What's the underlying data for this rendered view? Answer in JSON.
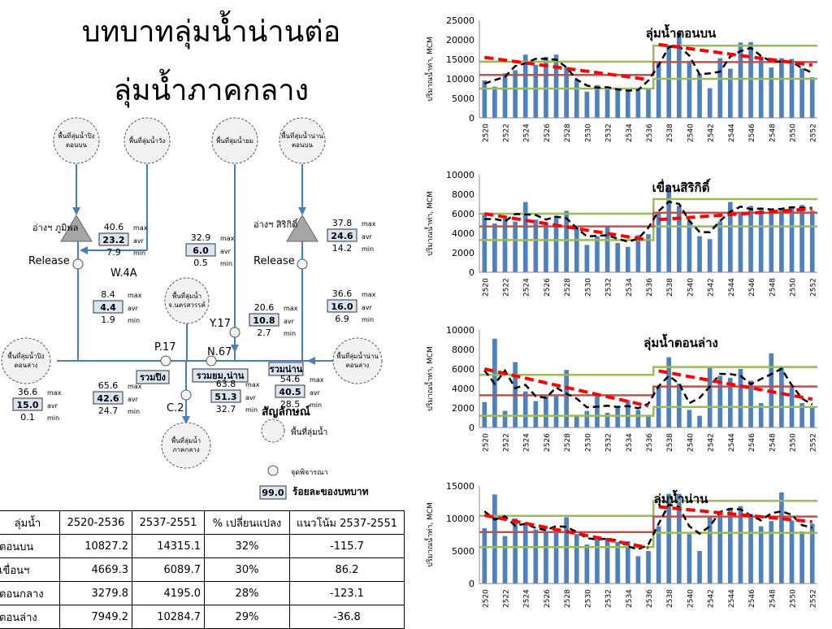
{
  "title": {
    "line1": "บทบาทลุ่มน้ำน่านต่อ",
    "line2": "ลุ่มน้ำภาคกลาง"
  },
  "diagram": {
    "top_basins": [
      "พื้นที่ลุ่มน้ำปิง ตอนบน",
      "พื้นที่ลุ่มน้ำวัง",
      "พื้นที่ลุ่มน้ำยม",
      "พื้นที่ลุ่มน้ำน่าน ตอนบน"
    ],
    "bhumibol_label": "อ่างฯ ภูมิพล",
    "sirikit_label": "อ่างฯ สิริกิติ์",
    "release_label": "Release",
    "mid_basin": "พื้นที่ลุ่มน้ำ จ.นครสวรรค์",
    "left_basin": "พื้นที่ลุ่มน้ำปิง ตอนล่าง",
    "right_basin": "พื้นที่ลุ่มน้ำน่าน ตอนล่าง",
    "bottom_basin": "พื้นที่ลุ่มน้ำ ภาคกลาง",
    "stations": {
      "w4a": "W.4A",
      "p17": "P.17",
      "n67": "N.67",
      "y17": "Y.17",
      "c2": "C.2"
    },
    "sums": {
      "ping": "รวมปิง",
      "yom_nan": "รวมยม,น่าน",
      "nan": "รวมน่าน"
    },
    "labels": {
      "max": "max",
      "avr": "avr",
      "min": "min"
    },
    "stats": {
      "bhumibol": {
        "max": "40.6",
        "avr": "23.2",
        "min": "7.9"
      },
      "sirikit": {
        "max": "37.8",
        "avr": "24.6",
        "min": "14.2"
      },
      "yom": {
        "max": "32.9",
        "avr": "6.0",
        "min": "0.5"
      },
      "w4a": {
        "max": "8.4",
        "avr": "4.4",
        "min": "1.9"
      },
      "y17": {
        "max": "20.6",
        "avr": "10.8",
        "min": "2.7"
      },
      "nan_lower": {
        "max": "36.6",
        "avr": "16.0",
        "min": "6.9"
      },
      "ping_lower": {
        "max": "36.6",
        "avr": "15.0",
        "min": "0.1"
      },
      "p17": {
        "max": "65.6",
        "avr": "42.6",
        "min": "24.7"
      },
      "n67": {
        "max": "63.8",
        "avr": "51.3",
        "min": "32.7"
      },
      "nan_sum": {
        "max": "54.6",
        "avr": "40.5",
        "min": "28.5"
      }
    },
    "legend": {
      "title": "สัญลักษณ์",
      "basin": "พื้นที่ลุ่มน้ำ",
      "point": "จุดพิจารณา",
      "pct_value": "99.0",
      "pct": "ร้อยละของบทบาท"
    }
  },
  "table": {
    "headers": [
      "ลุ่มน้ำ",
      "2520-2536",
      "2537-2551",
      "% เปลี่ยนแปลง",
      "แนวโน้ม 2537-2551"
    ],
    "rows": [
      [
        "ตอนบน",
        "10827.2",
        "14315.1",
        "32%",
        "-115.7"
      ],
      [
        "เขื่อนฯ",
        "4669.3",
        "6089.7",
        "30%",
        "86.2"
      ],
      [
        "ตอนกลาง",
        "3279.8",
        "4195.0",
        "28%",
        "-123.1"
      ],
      [
        "ตอนล่าง",
        "7949.2",
        "10284.7",
        "29%",
        "-36.8"
      ]
    ]
  },
  "colors": {
    "bar": "#4f81bd",
    "mean": "#c0504d",
    "sd": "#9bbb59",
    "trend": "#ff0000",
    "moving": "#000000"
  },
  "chart_data": [
    {
      "type": "bar",
      "title": "ลุ่มน้ำตอนบน",
      "ylabel": "ปริมาณน้ำท่า, MCM",
      "ylim": [
        0,
        25000
      ],
      "yticks": [
        0,
        5000,
        10000,
        15000,
        20000,
        25000
      ],
      "x": [
        "2520",
        "2521",
        "2522",
        "2523",
        "2524",
        "2525",
        "2526",
        "2527",
        "2528",
        "2529",
        "2530",
        "2531",
        "2532",
        "2533",
        "2534",
        "2535",
        "2536",
        "2537",
        "2538",
        "2539",
        "2540",
        "2541",
        "2542",
        "2543",
        "2544",
        "2545",
        "2546",
        "2547",
        "2548",
        "2549",
        "2550",
        "2551",
        "2552"
      ],
      "xtick_labels": [
        "2520",
        "2522",
        "2524",
        "2526",
        "2528",
        "2530",
        "2532",
        "2534",
        "2536",
        "2538",
        "2540",
        "2542",
        "2544",
        "2546",
        "2548",
        "2550",
        "2552"
      ],
      "values": [
        9600,
        8000,
        11400,
        12200,
        16200,
        13600,
        15600,
        16200,
        12900,
        9800,
        6700,
        8400,
        8000,
        7200,
        6700,
        7000,
        7700,
        14000,
        18600,
        21900,
        14600,
        11300,
        7600,
        15300,
        12600,
        19300,
        19400,
        15200,
        12900,
        15300,
        15100,
        12700,
        10400
      ],
      "reference_lines": {
        "mean": [
          [
            2520,
            2536,
            11000
          ],
          [
            2537,
            2552,
            14300
          ]
        ],
        "sd_upper": [
          [
            2520,
            2536,
            14400
          ],
          [
            2537,
            2552,
            18500
          ]
        ],
        "sd_lower": [
          [
            2520,
            2536,
            7500
          ],
          [
            2537,
            2552,
            10000
          ]
        ]
      },
      "trend": [
        [
          2520,
          15500
        ],
        [
          2536,
          9800
        ],
        [
          2537,
          18800
        ],
        [
          2552,
          13500
        ]
      ]
    },
    {
      "type": "bar",
      "title": "เขื่อนสิริกิติ์",
      "ylabel": "ปริมาณน้ำท่า, MCM",
      "ylim": [
        0,
        10000
      ],
      "yticks": [
        0,
        2000,
        4000,
        6000,
        8000,
        10000
      ],
      "x": [
        "2520",
        "2521",
        "2522",
        "2523",
        "2524",
        "2525",
        "2526",
        "2527",
        "2528",
        "2529",
        "2530",
        "2531",
        "2532",
        "2533",
        "2534",
        "2535",
        "2536",
        "2537",
        "2538",
        "2539",
        "2540",
        "2541",
        "2542",
        "2543",
        "2544",
        "2545",
        "2546",
        "2547",
        "2548",
        "2549",
        "2550",
        "2551",
        "2552"
      ],
      "xtick_labels": [
        "2520",
        "2522",
        "2524",
        "2526",
        "2528",
        "2530",
        "2532",
        "2534",
        "2536",
        "2538",
        "2540",
        "2542",
        "2544",
        "2546",
        "2548",
        "2550",
        "2552"
      ],
      "values": [
        5900,
        5000,
        5500,
        5200,
        7200,
        5400,
        5000,
        5800,
        6300,
        4500,
        2800,
        3700,
        4700,
        3000,
        2600,
        3800,
        3900,
        6000,
        8900,
        6800,
        5300,
        3700,
        3400,
        5200,
        7200,
        6200,
        6800,
        6400,
        6400,
        6500,
        6600,
        6900,
        6300
      ],
      "reference_lines": {
        "mean": [
          [
            2520,
            2536,
            4700
          ],
          [
            2537,
            2552,
            6100
          ]
        ],
        "sd_upper": [
          [
            2520,
            2536,
            6000
          ],
          [
            2537,
            2552,
            7500
          ]
        ],
        "sd_lower": [
          [
            2520,
            2536,
            3300
          ],
          [
            2537,
            2552,
            4700
          ]
        ]
      },
      "trend": [
        [
          2520,
          6000
        ],
        [
          2536,
          3300
        ],
        [
          2537,
          5400
        ],
        [
          2552,
          6500
        ]
      ]
    },
    {
      "type": "bar",
      "title": "ลุ่มน้ำตอนล่าง",
      "ylabel": "ปริมาณน้ำท่า, MCM",
      "ylim": [
        0,
        10000
      ],
      "yticks": [
        0,
        2000,
        4000,
        6000,
        8000,
        10000
      ],
      "x": [
        "2520",
        "2521",
        "2522",
        "2523",
        "2524",
        "2525",
        "2526",
        "2527",
        "2528",
        "2529",
        "2530",
        "2531",
        "2532",
        "2533",
        "2534",
        "2535",
        "2536",
        "2537",
        "2538",
        "2539",
        "2540",
        "2541",
        "2542",
        "2543",
        "2544",
        "2545",
        "2546",
        "2547",
        "2548",
        "2549",
        "2550",
        "2551",
        "2552"
      ],
      "xtick_labels": [
        "2520",
        "2522",
        "2524",
        "2526",
        "2528",
        "2530",
        "2532",
        "2534",
        "2536",
        "2538",
        "2540",
        "2542",
        "2544",
        "2546",
        "2548",
        "2550",
        "2552"
      ],
      "values": [
        2600,
        9100,
        1700,
        6700,
        3700,
        2700,
        3200,
        3200,
        5900,
        1300,
        1700,
        3200,
        1500,
        2000,
        2800,
        1800,
        1300,
        4200,
        7200,
        4500,
        1800,
        1200,
        6100,
        5300,
        5100,
        6000,
        4800,
        2500,
        7600,
        6300,
        4200,
        2500,
        2200
      ],
      "reference_lines": {
        "mean": [
          [
            2520,
            2536,
            3300
          ],
          [
            2537,
            2552,
            4200
          ]
        ],
        "sd_upper": [
          [
            2520,
            2536,
            5400
          ],
          [
            2537,
            2552,
            6200
          ]
        ],
        "sd_lower": [
          [
            2520,
            2536,
            1200
          ],
          [
            2537,
            2552,
            2100
          ]
        ]
      },
      "trend": [
        [
          2520,
          6000
        ],
        [
          2536,
          2200
        ],
        [
          2537,
          5800
        ],
        [
          2552,
          2900
        ]
      ]
    },
    {
      "type": "bar",
      "title": "ลุ่มน้ำน่าน",
      "ylabel": "ปริมาณน้ำท่า, MCM",
      "ylim": [
        0,
        15000
      ],
      "yticks": [
        0,
        5000,
        10000,
        15000
      ],
      "x": [
        "2520",
        "2521",
        "2522",
        "2523",
        "2524",
        "2525",
        "2526",
        "2527",
        "2528",
        "2529",
        "2530",
        "2531",
        "2532",
        "2533",
        "2534",
        "2535",
        "2536",
        "2537",
        "2538",
        "2539",
        "2540",
        "2541",
        "2542",
        "2543",
        "2544",
        "2545",
        "2546",
        "2547",
        "2548",
        "2549",
        "2550",
        "2551",
        "2552"
      ],
      "xtick_labels": [
        "2520",
        "2522",
        "2524",
        "2526",
        "2528",
        "2530",
        "2532",
        "2534",
        "2536",
        "2538",
        "2540",
        "2542",
        "2544",
        "2546",
        "2548",
        "2550",
        "2552"
      ],
      "values": [
        8500,
        13700,
        7300,
        10000,
        9300,
        8300,
        8000,
        8300,
        10200,
        7600,
        6000,
        7300,
        7000,
        6400,
        6500,
        4200,
        5000,
        8800,
        13800,
        13800,
        7600,
        5000,
        10400,
        11000,
        11600,
        11900,
        10700,
        8800,
        9600,
        14000,
        9700,
        8000,
        9200
      ],
      "reference_lines": {
        "mean": [
          [
            2520,
            2536,
            7900
          ],
          [
            2537,
            2552,
            10300
          ]
        ],
        "sd_upper": [
          [
            2520,
            2536,
            10400
          ],
          [
            2537,
            2552,
            12700
          ]
        ],
        "sd_lower": [
          [
            2520,
            2536,
            5600
          ],
          [
            2537,
            2552,
            7800
          ]
        ]
      },
      "trend": [
        [
          2520,
          10500
        ],
        [
          2536,
          5500
        ],
        [
          2537,
          11800
        ],
        [
          2552,
          9500
        ]
      ]
    }
  ]
}
